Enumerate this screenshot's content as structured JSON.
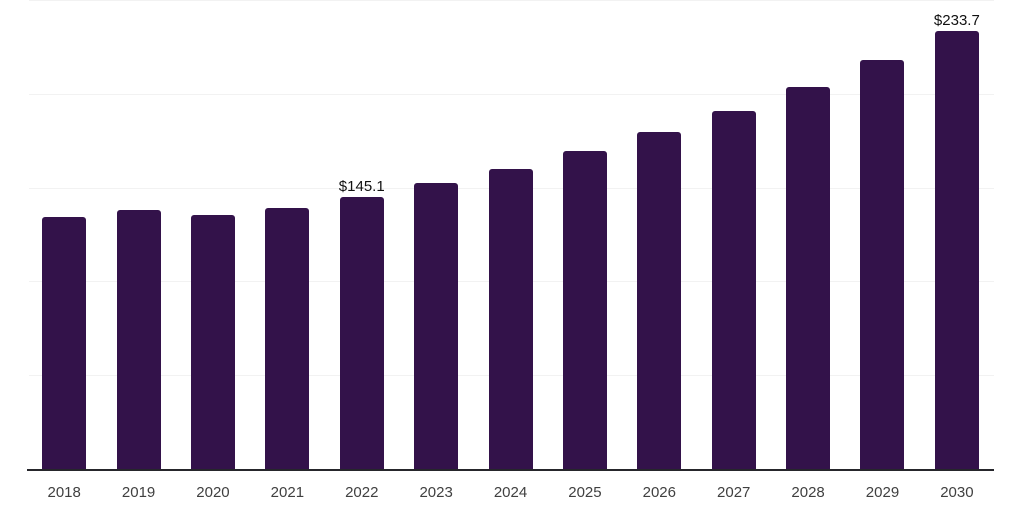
{
  "chart_data": {
    "type": "bar",
    "categories": [
      "2018",
      "2019",
      "2020",
      "2021",
      "2022",
      "2023",
      "2024",
      "2025",
      "2026",
      "2027",
      "2028",
      "2029",
      "2030"
    ],
    "values": [
      134.6,
      138.2,
      135.2,
      139.1,
      145.1,
      152.4,
      160.0,
      169.4,
      179.6,
      190.6,
      203.5,
      218.0,
      233.7
    ],
    "labeled_points": [
      {
        "category": "2022",
        "label": "$145.1"
      },
      {
        "category": "2030",
        "label": "$233.7"
      }
    ],
    "title": "",
    "xlabel": "",
    "ylabel": "",
    "ylim": [
      0,
      250
    ],
    "gridline_values": [
      50,
      100,
      150,
      200,
      250
    ],
    "grid": "horizontal",
    "legend": "none",
    "bar_color": "#33124A",
    "axis_color": "#26262B",
    "gridline_color": "#F2F2F2",
    "value_label_color": "#111111",
    "tick_label_color": "#404040",
    "background_color": "#FFFFFF"
  }
}
